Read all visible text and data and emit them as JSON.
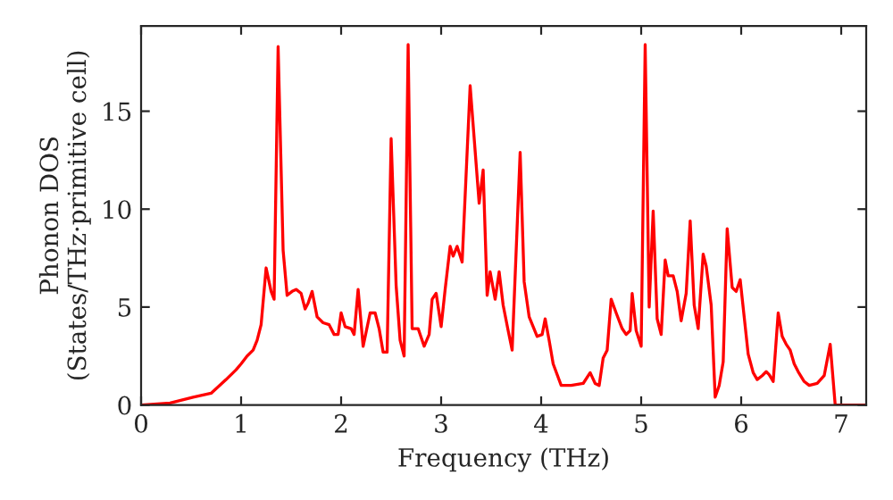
{
  "chart_data": {
    "type": "line",
    "xlabel": "Frequency (THz)",
    "ylabel": "Phonon DOS\n(States/THz·primitive cell)",
    "x": [
      0,
      0.29,
      0.52,
      0.7,
      0.85,
      0.95,
      1.0,
      1.06,
      1.12,
      1.16,
      1.2,
      1.25,
      1.3,
      1.33,
      1.37,
      1.42,
      1.46,
      1.51,
      1.55,
      1.6,
      1.64,
      1.67,
      1.71,
      1.76,
      1.82,
      1.88,
      1.93,
      1.97,
      2.0,
      2.04,
      2.1,
      2.13,
      2.17,
      2.22,
      2.29,
      2.34,
      2.38,
      2.42,
      2.46,
      2.5,
      2.55,
      2.59,
      2.63,
      2.67,
      2.71,
      2.77,
      2.83,
      2.88,
      2.91,
      2.95,
      3.0,
      3.04,
      3.09,
      3.12,
      3.16,
      3.21,
      3.29,
      3.38,
      3.42,
      3.46,
      3.49,
      3.54,
      3.58,
      3.62,
      3.67,
      3.71,
      3.79,
      3.83,
      3.88,
      3.92,
      3.96,
      4.01,
      4.04,
      4.08,
      4.12,
      4.2,
      4.3,
      4.42,
      4.49,
      4.54,
      4.58,
      4.62,
      4.66,
      4.7,
      4.75,
      4.81,
      4.85,
      4.89,
      4.91,
      4.95,
      5.0,
      5.04,
      5.08,
      5.12,
      5.16,
      5.2,
      5.24,
      5.27,
      5.32,
      5.36,
      5.4,
      5.45,
      5.49,
      5.53,
      5.57,
      5.62,
      5.65,
      5.7,
      5.74,
      5.78,
      5.82,
      5.86,
      5.91,
      5.95,
      5.99,
      6.03,
      6.07,
      6.12,
      6.16,
      6.21,
      6.25,
      6.28,
      6.32,
      6.37,
      6.41,
      6.45,
      6.49,
      6.53,
      6.57,
      6.63,
      6.68,
      6.76,
      6.83,
      6.89,
      6.94,
      7.25
    ],
    "series": [
      {
        "color": "#ff0000",
        "values": [
          0,
          0.1,
          0.4,
          0.6,
          1.3,
          1.8,
          2.1,
          2.5,
          2.8,
          3.3,
          4.1,
          7.0,
          5.8,
          5.4,
          18.3,
          7.9,
          5.6,
          5.8,
          5.9,
          5.7,
          4.9,
          5.2,
          5.8,
          4.5,
          4.2,
          4.1,
          3.6,
          3.6,
          4.7,
          4.0,
          3.9,
          3.6,
          5.9,
          3.0,
          4.7,
          4.7,
          3.9,
          2.7,
          2.7,
          13.6,
          6.1,
          3.3,
          2.5,
          18.4,
          3.9,
          3.9,
          3.0,
          3.6,
          5.4,
          5.7,
          4.0,
          5.9,
          8.1,
          7.6,
          8.1,
          7.3,
          16.3,
          10.3,
          12.0,
          5.6,
          6.8,
          5.4,
          6.8,
          5.1,
          3.8,
          2.8,
          12.9,
          6.3,
          4.5,
          4.0,
          3.5,
          3.6,
          4.4,
          3.3,
          2.1,
          1.0,
          1.0,
          1.1,
          1.65,
          1.1,
          1.0,
          2.4,
          2.8,
          5.4,
          4.7,
          3.9,
          3.6,
          3.8,
          5.7,
          3.8,
          3.0,
          18.4,
          5.0,
          9.9,
          4.4,
          3.6,
          7.4,
          6.6,
          6.6,
          5.8,
          4.3,
          5.7,
          9.4,
          5.1,
          3.9,
          7.7,
          7.1,
          5.1,
          0.4,
          1.0,
          2.2,
          9.0,
          6.0,
          5.8,
          6.4,
          4.5,
          2.6,
          1.65,
          1.3,
          1.5,
          1.7,
          1.55,
          1.2,
          4.7,
          3.5,
          3.1,
          2.8,
          2.1,
          1.7,
          1.2,
          1.0,
          1.1,
          1.5,
          3.1,
          0,
          0
        ]
      }
    ],
    "xlim": [
      0,
      7.25
    ],
    "xticks": [
      0,
      1,
      2,
      3,
      4,
      5,
      6,
      7
    ],
    "ylim": [
      0,
      19.35
    ],
    "yticks": [
      0,
      5,
      10,
      15
    ],
    "grid": false,
    "legend": false,
    "marker": "none",
    "line_style": "solid"
  }
}
